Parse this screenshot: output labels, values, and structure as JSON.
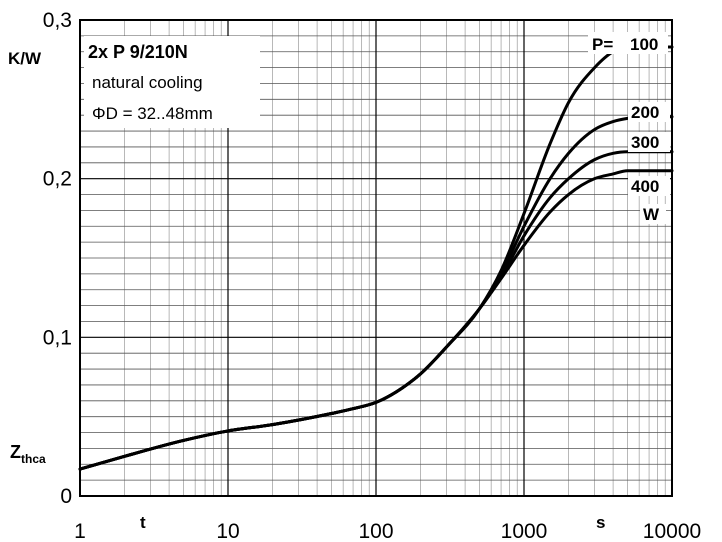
{
  "chart_data": {
    "type": "line",
    "x_scale": "log",
    "xlim": [
      1,
      10000
    ],
    "ylim": [
      0,
      0.3
    ],
    "grid": true,
    "x_ticks": [
      "1",
      "10",
      "100",
      "1000",
      "10000"
    ],
    "y_ticks": [
      "0",
      "0,1",
      "0,2",
      "0,3"
    ],
    "xlabel": "t",
    "x_unit": "s",
    "ylabel": "Zthca",
    "ylabel_main": "Z",
    "ylabel_sub": "thca",
    "y_unit": "K/W",
    "title": "2x P 9/210N",
    "annotations": [
      "natural cooling",
      "ΦD = 32..48mm"
    ],
    "power_prefix": "P=",
    "power_unit": "W",
    "series": [
      {
        "name": "100",
        "x": [
          1,
          2,
          5,
          10,
          20,
          50,
          70,
          100,
          150,
          200,
          300,
          500,
          700,
          1000,
          1500,
          2000,
          3000,
          4000,
          5000,
          7000,
          10000
        ],
        "y": [
          0.017,
          0.025,
          0.035,
          0.041,
          0.045,
          0.052,
          0.055,
          0.059,
          0.068,
          0.077,
          0.094,
          0.118,
          0.142,
          0.178,
          0.222,
          0.248,
          0.27,
          0.28,
          0.283,
          0.283,
          0.283
        ]
      },
      {
        "name": "200",
        "x": [
          1,
          2,
          5,
          10,
          20,
          50,
          70,
          100,
          150,
          200,
          300,
          500,
          700,
          1000,
          1500,
          2000,
          3000,
          4000,
          5000,
          7000,
          10000
        ],
        "y": [
          0.017,
          0.025,
          0.035,
          0.041,
          0.045,
          0.052,
          0.055,
          0.059,
          0.068,
          0.077,
          0.094,
          0.118,
          0.14,
          0.17,
          0.2,
          0.216,
          0.231,
          0.236,
          0.238,
          0.239,
          0.239
        ]
      },
      {
        "name": "300",
        "x": [
          1,
          2,
          5,
          10,
          20,
          50,
          70,
          100,
          150,
          200,
          300,
          500,
          700,
          1000,
          1500,
          2000,
          3000,
          4000,
          5000,
          7000,
          10000
        ],
        "y": [
          0.017,
          0.025,
          0.035,
          0.041,
          0.045,
          0.052,
          0.055,
          0.059,
          0.068,
          0.077,
          0.094,
          0.118,
          0.138,
          0.164,
          0.188,
          0.2,
          0.212,
          0.216,
          0.217,
          0.217,
          0.217
        ]
      },
      {
        "name": "400",
        "x": [
          1,
          2,
          5,
          10,
          20,
          50,
          70,
          100,
          150,
          200,
          300,
          500,
          700,
          1000,
          1500,
          2000,
          3000,
          4000,
          5000,
          7000,
          10000
        ],
        "y": [
          0.017,
          0.025,
          0.035,
          0.041,
          0.045,
          0.052,
          0.055,
          0.059,
          0.068,
          0.077,
          0.094,
          0.118,
          0.137,
          0.158,
          0.179,
          0.19,
          0.2,
          0.203,
          0.205,
          0.205,
          0.205
        ]
      }
    ]
  }
}
